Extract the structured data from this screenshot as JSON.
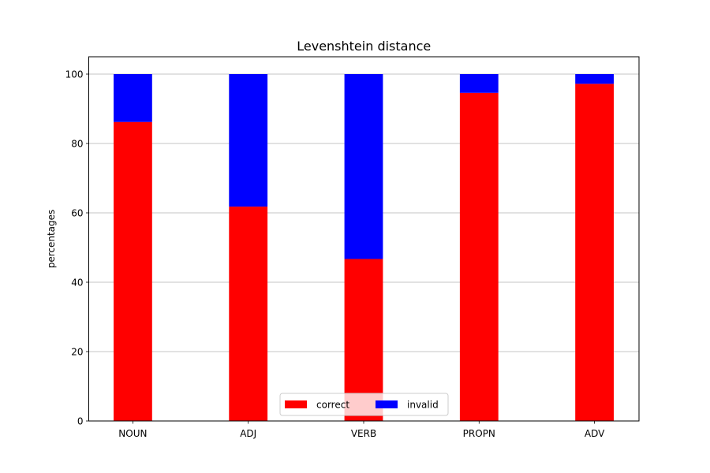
{
  "chart_data": {
    "type": "bar",
    "stacked": true,
    "title": "Levenshtein distance",
    "xlabel": "",
    "ylabel": "percentages",
    "categories": [
      "NOUN",
      "ADJ",
      "VERB",
      "PROPN",
      "ADV"
    ],
    "series": [
      {
        "name": "correct",
        "color": "#ff0000",
        "values": [
          86.2,
          61.8,
          46.7,
          94.6,
          97.2
        ]
      },
      {
        "name": "invalid",
        "color": "#0000ff",
        "values": [
          13.8,
          38.2,
          53.3,
          5.4,
          2.8
        ]
      }
    ],
    "ylim": [
      0,
      105
    ],
    "yticks": [
      0,
      20,
      40,
      60,
      80,
      100
    ],
    "grid": "y",
    "legend": "lower-center"
  }
}
